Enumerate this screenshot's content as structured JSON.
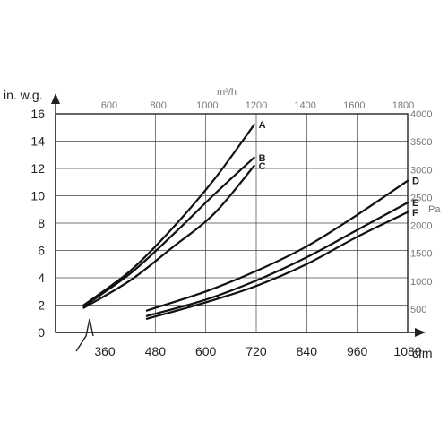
{
  "chart_data": {
    "type": "line",
    "x_unit": "cfm",
    "y_unit": "in. w.g.",
    "top_unit": "m³/h",
    "right_unit": "Pa",
    "xlim": [
      300,
      1080
    ],
    "ylim": [
      0,
      16
    ],
    "x_ticks": [
      360,
      480,
      600,
      720,
      840,
      960,
      1080
    ],
    "y_ticks": [
      0,
      2,
      4,
      6,
      8,
      10,
      12,
      14,
      16
    ],
    "top_ticks": [
      600,
      800,
      1000,
      1200,
      1400,
      1600,
      1800
    ],
    "right_ticks": [
      500,
      1000,
      1500,
      2000,
      2500,
      3000,
      3500,
      4000
    ],
    "grid": true,
    "series": [
      {
        "name": "A",
        "x": [
          310,
          420,
          520,
          620,
          715
        ],
        "y": [
          2.0,
          4.5,
          7.6,
          11.2,
          15.2
        ]
      },
      {
        "name": "B",
        "x": [
          310,
          420,
          520,
          620,
          715
        ],
        "y": [
          1.9,
          4.3,
          7.1,
          10.1,
          12.8
        ]
      },
      {
        "name": "C",
        "x": [
          310,
          420,
          520,
          620,
          715
        ],
        "y": [
          1.8,
          3.8,
          6.2,
          8.7,
          12.2
        ]
      },
      {
        "name": "D",
        "x": [
          460,
          600,
          720,
          840,
          960,
          1080
        ],
        "y": [
          1.6,
          3.0,
          4.5,
          6.3,
          8.6,
          11.1
        ]
      },
      {
        "name": "E",
        "x": [
          460,
          600,
          720,
          840,
          960,
          1080
        ],
        "y": [
          1.2,
          2.4,
          3.8,
          5.5,
          7.5,
          9.5
        ]
      },
      {
        "name": "F",
        "x": [
          460,
          600,
          720,
          840,
          960,
          1080
        ],
        "y": [
          1.0,
          2.2,
          3.4,
          5.0,
          7.0,
          8.8
        ]
      }
    ]
  }
}
